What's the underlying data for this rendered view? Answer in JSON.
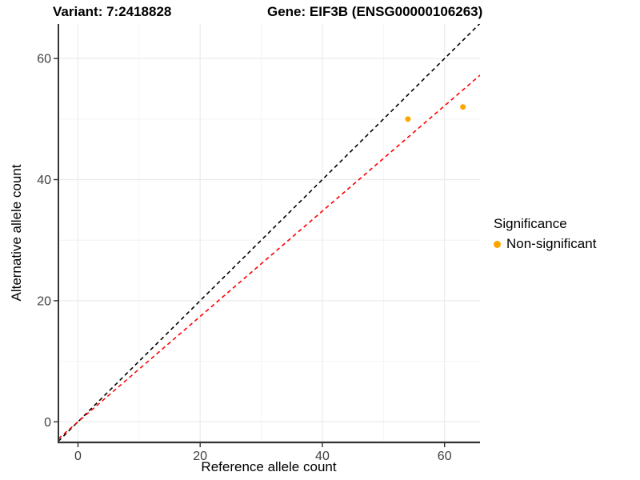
{
  "chart_data": {
    "type": "scatter",
    "titles": {
      "left": "Variant: 7:2418828",
      "right": "Gene: EIF3B (ENSG00000106263)"
    },
    "xlabel": "Reference allele count",
    "ylabel": "Alternative allele count",
    "xlim": [
      -3.2,
      65.8
    ],
    "ylim": [
      -3.4,
      65.7
    ],
    "x_major_ticks": [
      0,
      20,
      40,
      60
    ],
    "y_major_ticks": [
      0,
      20,
      40,
      60
    ],
    "x_minor_gridlines": [
      10,
      30,
      50
    ],
    "y_minor_gridlines": [
      10,
      30,
      50
    ],
    "grid": true,
    "points": [
      {
        "x": 54,
        "y": 50,
        "series": "Non-significant"
      },
      {
        "x": 63,
        "y": 52,
        "series": "Non-significant"
      }
    ],
    "point_color": "#FFA500",
    "reference_lines": [
      {
        "name": "identity-line",
        "slope": 1,
        "intercept": 0,
        "color": "#000000",
        "style": "dashed"
      },
      {
        "name": "fit-line",
        "slope": 0.87,
        "intercept": 0,
        "color": "#FF0000",
        "style": "dashed"
      }
    ],
    "legend": {
      "title": "Significance",
      "position": "right",
      "items": [
        {
          "label": "Non-significant",
          "color": "#FFA500"
        }
      ]
    }
  },
  "colors": {
    "grid_major": "#EBEBEB",
    "grid_minor": "#F4F4F4",
    "axis_line": "#333333",
    "tick_mark": "#333333",
    "tick_label": "#404040"
  }
}
